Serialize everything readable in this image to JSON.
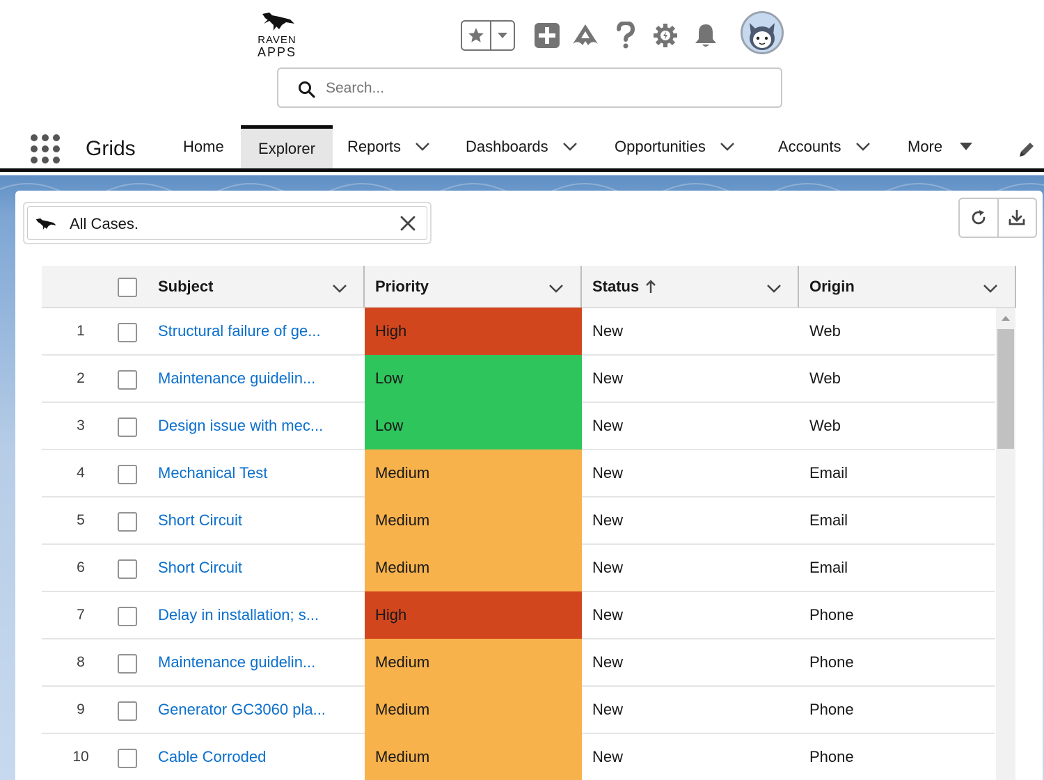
{
  "header": {
    "logo_line1": "RAVEN",
    "logo_line2": "APPS",
    "search_placeholder": "Search...",
    "icons": [
      "favorites-star-icon",
      "favorites-dropdown-icon",
      "global-actions-plus-icon",
      "trailhead-icon",
      "help-icon",
      "setup-gear-icon",
      "notifications-bell-icon",
      "user-avatar"
    ]
  },
  "nav": {
    "app_name": "Grids",
    "tabs": [
      {
        "label": "Home",
        "has_menu": false,
        "active": false
      },
      {
        "label": "Explorer",
        "has_menu": false,
        "active": true
      },
      {
        "label": "Reports",
        "has_menu": true,
        "active": false
      },
      {
        "label": "Dashboards",
        "has_menu": true,
        "active": false
      },
      {
        "label": "Opportunities",
        "has_menu": true,
        "active": false
      },
      {
        "label": "Accounts",
        "has_menu": true,
        "active": false
      },
      {
        "label": "More",
        "has_menu": true,
        "active": false
      }
    ]
  },
  "filter": {
    "value": "All Cases."
  },
  "grid": {
    "columns": [
      {
        "label": "Subject"
      },
      {
        "label": "Priority"
      },
      {
        "label": "Status",
        "sorted": "ascending"
      },
      {
        "label": "Origin"
      }
    ],
    "rows": [
      {
        "num": "1",
        "subject": "Structural failure of ge...",
        "priority": "High",
        "status": "New",
        "origin": "Web"
      },
      {
        "num": "2",
        "subject": "Maintenance guidelin...",
        "priority": "Low",
        "status": "New",
        "origin": "Web"
      },
      {
        "num": "3",
        "subject": "Design issue with mec...",
        "priority": "Low",
        "status": "New",
        "origin": "Web"
      },
      {
        "num": "4",
        "subject": "Mechanical Test",
        "priority": "Medium",
        "status": "New",
        "origin": "Email"
      },
      {
        "num": "5",
        "subject": "Short Circuit",
        "priority": "Medium",
        "status": "New",
        "origin": "Email"
      },
      {
        "num": "6",
        "subject": "Short Circuit",
        "priority": "Medium",
        "status": "New",
        "origin": "Email"
      },
      {
        "num": "7",
        "subject": "Delay in installation; s...",
        "priority": "High",
        "status": "New",
        "origin": "Phone"
      },
      {
        "num": "8",
        "subject": "Maintenance guidelin...",
        "priority": "Medium",
        "status": "New",
        "origin": "Phone"
      },
      {
        "num": "9",
        "subject": "Generator GC3060 pla...",
        "priority": "Medium",
        "status": "New",
        "origin": "Phone"
      },
      {
        "num": "10",
        "subject": "Cable Corroded",
        "priority": "Medium",
        "status": "New",
        "origin": "Phone"
      }
    ]
  },
  "colors": {
    "priority_high": "#d2461e",
    "priority_low": "#2ec55c",
    "priority_medium": "#f8b24c",
    "link": "#0b6fcc",
    "brand_band": "#7ea6d4"
  }
}
